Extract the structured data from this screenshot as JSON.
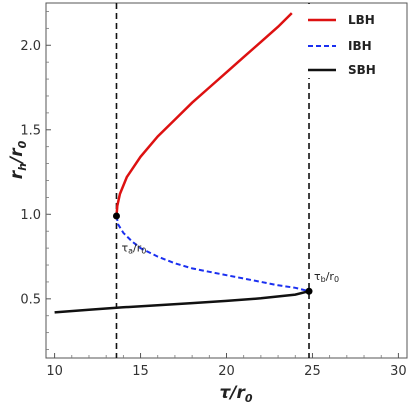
{
  "chart_data": {
    "type": "line",
    "xlabel": {
      "main": "τ/r",
      "sub": "0"
    },
    "ylabel": {
      "main": "r",
      "sub1": "h",
      "mid": "/r",
      "sub2": "0"
    },
    "xlim": [
      9.5,
      30.5
    ],
    "ylim": [
      0.15,
      2.25
    ],
    "xticks": [
      10,
      15,
      20,
      25,
      30
    ],
    "yticks": [
      0.5,
      1.0,
      1.5,
      2.0
    ],
    "xtick_labels": [
      "10",
      "15",
      "20",
      "25",
      "30"
    ],
    "ytick_labels": [
      "0.5",
      "1.0",
      "1.5",
      "2.0"
    ],
    "legend_position": "top-right",
    "series": [
      {
        "name": "LBH",
        "color": "#dd1111",
        "style": "solid",
        "points": [
          [
            13.6,
            0.99
          ],
          [
            13.65,
            1.05
          ],
          [
            13.8,
            1.12
          ],
          [
            14.2,
            1.22
          ],
          [
            15.0,
            1.34
          ],
          [
            16.0,
            1.46
          ],
          [
            17.0,
            1.56
          ],
          [
            18.0,
            1.66
          ],
          [
            19.0,
            1.75
          ],
          [
            20.0,
            1.84
          ],
          [
            21.0,
            1.93
          ],
          [
            22.0,
            2.02
          ],
          [
            23.0,
            2.11
          ],
          [
            23.8,
            2.19
          ]
        ]
      },
      {
        "name": "IBH",
        "color": "#1a2ff0",
        "style": "dashed",
        "points": [
          [
            13.6,
            0.99
          ],
          [
            13.7,
            0.94
          ],
          [
            14.0,
            0.89
          ],
          [
            14.5,
            0.84
          ],
          [
            15.0,
            0.8
          ],
          [
            16.0,
            0.75
          ],
          [
            17.0,
            0.71
          ],
          [
            18.0,
            0.68
          ],
          [
            19.0,
            0.66
          ],
          [
            20.0,
            0.64
          ],
          [
            21.0,
            0.62
          ],
          [
            22.0,
            0.6
          ],
          [
            23.0,
            0.58
          ],
          [
            24.0,
            0.565
          ],
          [
            24.8,
            0.545
          ]
        ]
      },
      {
        "name": "SBH",
        "color": "#111111",
        "style": "solid",
        "points": [
          [
            10.0,
            0.42
          ],
          [
            12.0,
            0.435
          ],
          [
            14.0,
            0.45
          ],
          [
            16.0,
            0.462
          ],
          [
            18.0,
            0.475
          ],
          [
            20.0,
            0.488
          ],
          [
            22.0,
            0.503
          ],
          [
            24.0,
            0.525
          ],
          [
            24.8,
            0.545
          ]
        ]
      }
    ],
    "vlines": [
      {
        "x": 13.6,
        "label_main": "τ",
        "label_sub": "a",
        "label_rest": "/r",
        "label_sub2": "0",
        "label_y": 0.78
      },
      {
        "x": 24.8,
        "label_main": "τ",
        "label_sub": "b",
        "label_rest": "/r",
        "label_sub2": "0",
        "label_y": 0.61
      }
    ],
    "critical_points": [
      [
        13.6,
        0.99
      ],
      [
        24.8,
        0.545
      ]
    ]
  }
}
